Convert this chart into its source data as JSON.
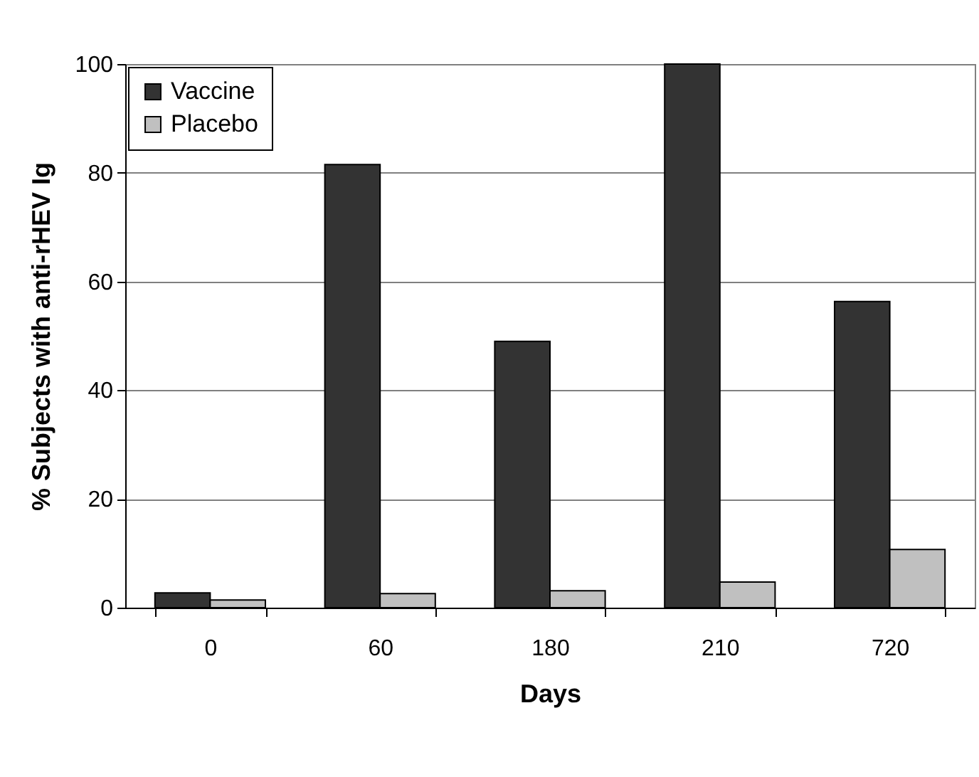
{
  "chart_data": {
    "type": "bar",
    "xlabel": "Days",
    "ylabel": "% Subjects with anti-rHEV Ig",
    "categories": [
      "0",
      "60",
      "180",
      "210",
      "720"
    ],
    "series": [
      {
        "name": "Vaccine",
        "color": "#333333",
        "values": [
          2.7,
          81.5,
          49,
          100,
          56.3
        ]
      },
      {
        "name": "Placebo",
        "color": "#c0c0c0",
        "values": [
          1.4,
          2.6,
          3.1,
          4.7,
          10.7
        ]
      }
    ],
    "ylim": [
      0,
      100
    ],
    "yticks": [
      0,
      20,
      40,
      60,
      80,
      100
    ],
    "grid": "y",
    "legend": "top left"
  }
}
